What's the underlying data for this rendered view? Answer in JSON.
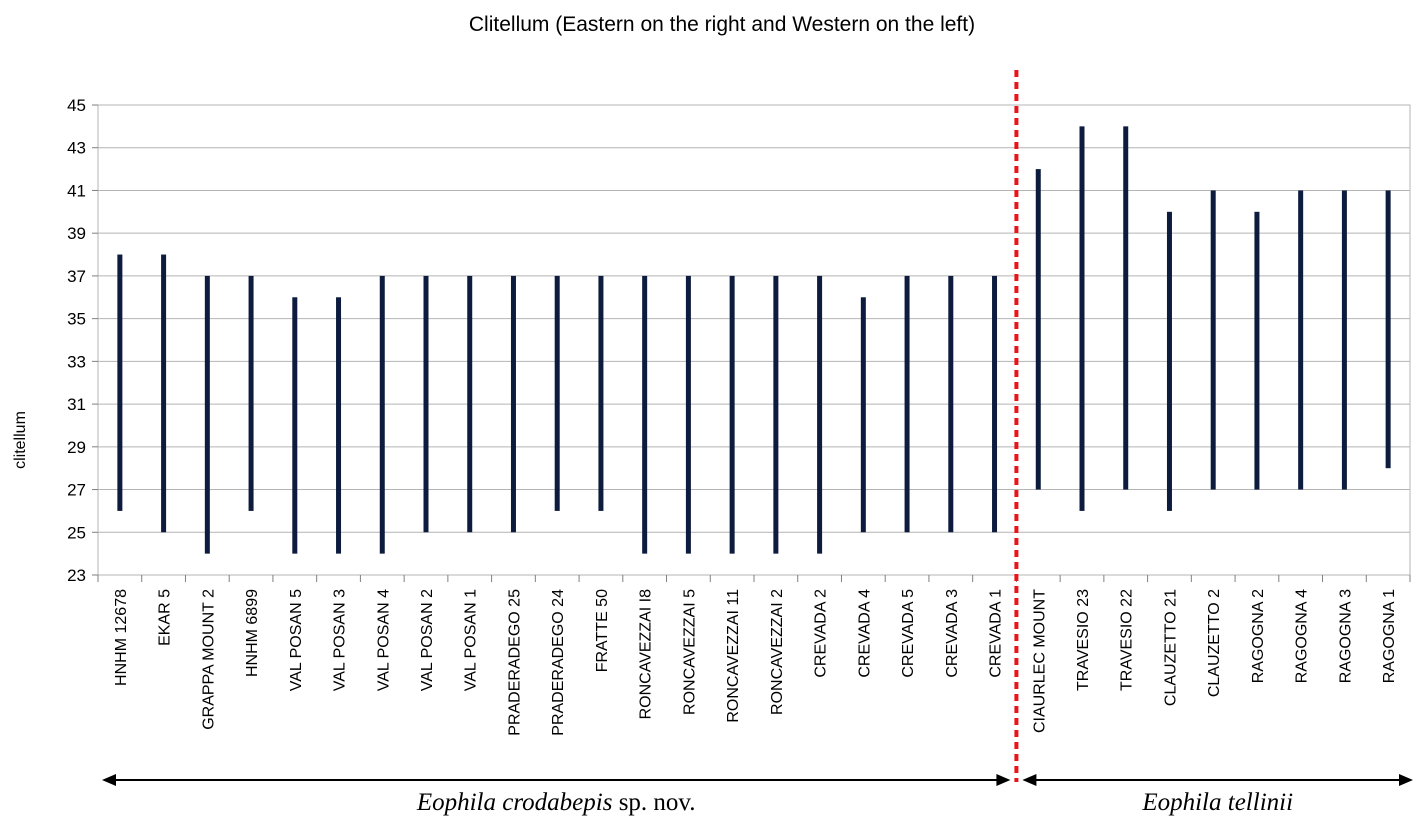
{
  "chart_data": {
    "type": "range",
    "title": "Clitellum (Eastern on the right and Western on the left)",
    "ylabel": "clitellum",
    "xlabel": "",
    "ylim": [
      23,
      45
    ],
    "yticks": [
      23,
      25,
      27,
      29,
      31,
      33,
      35,
      37,
      39,
      41,
      43,
      45
    ],
    "grid": true,
    "categories": [
      "HNHM 12678",
      "EKAR 5",
      "GRAPPA MOUNT 2",
      "HNHM 6899",
      "VAL POSAN 5",
      "VAL POSAN 3",
      "VAL POSAN 4",
      "VAL POSAN 2",
      "VAL POSAN 1",
      "PRADERADEGO 25",
      "PRADERADEGO 24",
      "FRATTE 50",
      "RONCAVEZZAI  I8",
      "RONCAVEZZAI 5",
      "RONCAVEZZAI 11",
      "RONCAVEZZAI 2",
      "CREVADA 2",
      "CREVADA 4",
      "CREVADA 5",
      "CREVADA 3",
      "CREVADA 1",
      "CIAURLEC MOUNT",
      "TRAVESIO  23",
      "TRAVESIO  22",
      "CLAUZETTO  21",
      "CLAUZETTO  2",
      "RAGOGNA 2",
      "RAGOGNA 4",
      "RAGOGNA 3",
      "RAGOGNA 1"
    ],
    "series": [
      {
        "low": [
          26,
          25,
          24,
          26,
          24,
          24,
          24,
          25,
          25,
          25,
          26,
          26,
          24,
          24,
          24,
          24,
          24,
          25,
          25,
          25,
          25,
          27,
          26,
          27,
          26,
          27,
          27,
          27,
          27,
          28
        ],
        "high": [
          38,
          38,
          37,
          37,
          36,
          36,
          37,
          37,
          37,
          37,
          37,
          37,
          37,
          37,
          37,
          37,
          37,
          36,
          37,
          37,
          37,
          42,
          44,
          44,
          40,
          41,
          40,
          41,
          41,
          41
        ]
      }
    ],
    "divider_after_index": 20,
    "groups": [
      {
        "species": "Eophila crodabepis",
        "suffix": " sp. nov.",
        "from": 0,
        "to": 20
      },
      {
        "species": "Eophila tellinii",
        "suffix": "",
        "from": 21,
        "to": 29
      }
    ],
    "colors": {
      "bar": "#0d1b3e",
      "divider": "#e8141a",
      "grid": "#b4b4b4",
      "axis": "#7f7f7f",
      "text": "#000000"
    }
  }
}
